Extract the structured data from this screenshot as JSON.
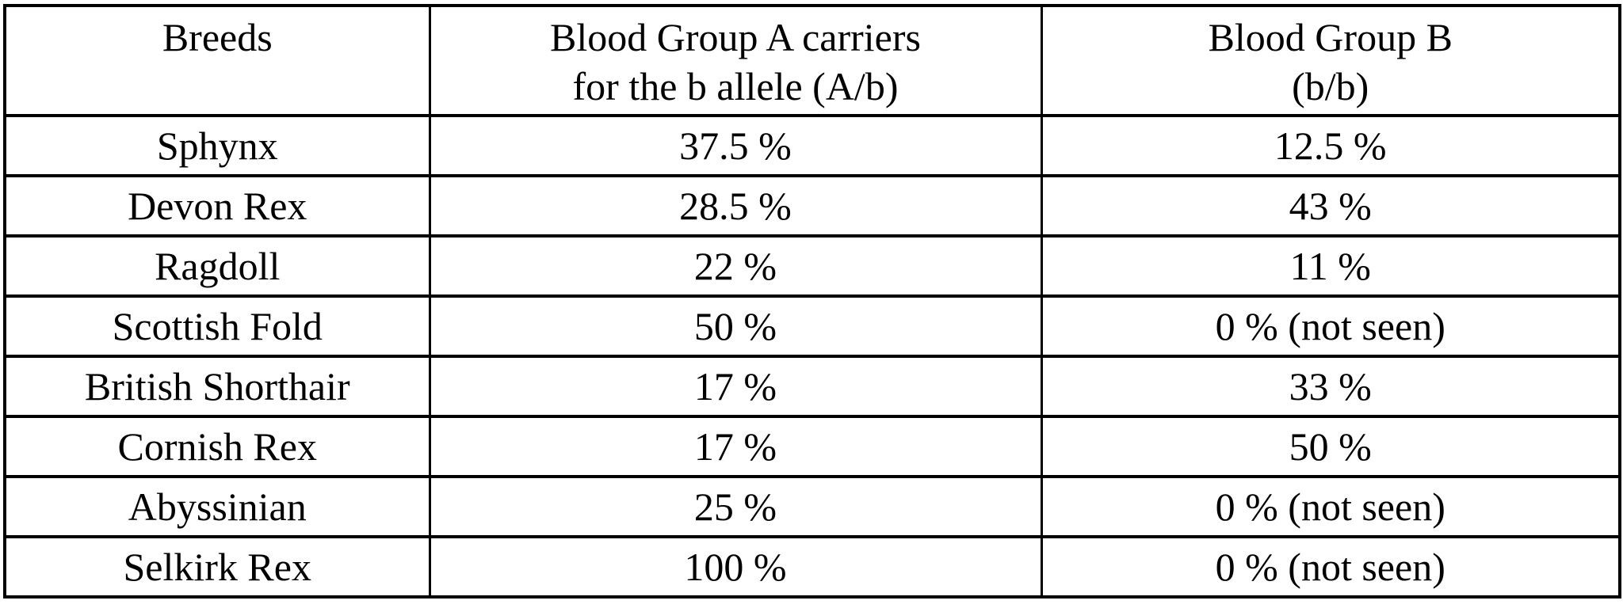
{
  "colors": {
    "border": "#000000",
    "text": "#000000",
    "background": "#ffffff"
  },
  "chart_data": {
    "type": "table",
    "columns": [
      "Breeds",
      "Blood Group A carriers\nfor the b allele (A/b)",
      "Blood Group B\n(b/b)"
    ],
    "rows": [
      [
        "Sphynx",
        "37.5 %",
        "12.5 %"
      ],
      [
        "Devon Rex",
        "28.5 %",
        "43 %"
      ],
      [
        "Ragdoll",
        "22 %",
        "11 %"
      ],
      [
        "Scottish Fold",
        "50 %",
        "0 % (not seen)"
      ],
      [
        "British Shorthair",
        "17 %",
        "33 %"
      ],
      [
        "Cornish Rex",
        "17 %",
        "50 %"
      ],
      [
        "Abyssinian",
        "25 %",
        "0 % (not seen)"
      ],
      [
        "Selkirk Rex",
        "100 %",
        "0 % (not seen)"
      ]
    ],
    "numeric_values": {
      "group_a_carrier_percent": [
        37.5,
        28.5,
        22,
        50,
        17,
        17,
        25,
        100
      ],
      "group_b_percent": [
        12.5,
        43,
        11,
        0,
        33,
        50,
        0,
        0
      ]
    }
  }
}
